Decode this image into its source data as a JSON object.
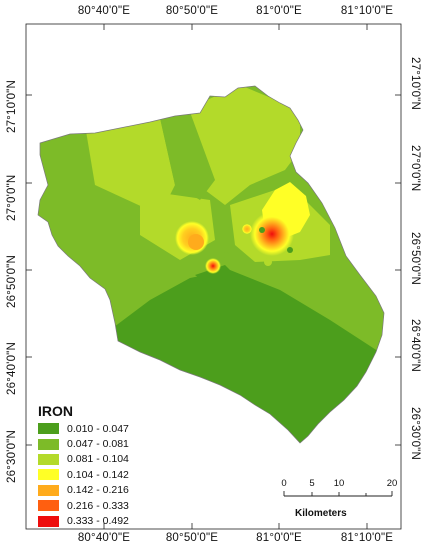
{
  "map": {
    "top_labels": [
      "80°40'0\"E",
      "80°50'0\"E",
      "81°0'0\"E",
      "81°10'0\"E"
    ],
    "bottom_labels": [
      "80°40'0\"E",
      "80°50'0\"E",
      "81°0'0\"E",
      "81°10'0\"E"
    ],
    "left_labels": [
      "27°10'0\"N",
      "27°0'0\"N",
      "26°50'0\"N",
      "26°40'0\"N",
      "26°30'0\"N"
    ],
    "right_labels": [
      "27°10'0\"N",
      "27°0'0\"N",
      "26°50'0\"N",
      "26°40'0\"N",
      "26°30'0\"N"
    ]
  },
  "legend": {
    "title": "IRON",
    "items": [
      {
        "label": "0.010 - 0.047",
        "color": "#4c9e1c"
      },
      {
        "label": "0.047 - 0.081",
        "color": "#7dbb28"
      },
      {
        "label": "0.081 - 0.104",
        "color": "#b3da2a"
      },
      {
        "label": "0.104 - 0.142",
        "color": "#ffff26"
      },
      {
        "label": "0.142 - 0.216",
        "color": "#ffab1c"
      },
      {
        "label": "0.216 - 0.333",
        "color": "#ff5f10"
      },
      {
        "label": "0.333 - 0.492",
        "color": "#ee0d0d"
      }
    ]
  },
  "scale_bar": {
    "ticks": [
      "0",
      "5",
      "10",
      "20"
    ],
    "unit": "Kilometers"
  }
}
